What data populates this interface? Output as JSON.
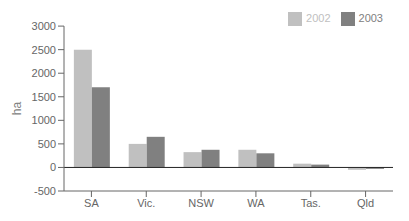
{
  "chart_data": {
    "type": "bar",
    "categories": [
      "SA",
      "Vic.",
      "NSW",
      "WA",
      "Tas.",
      "Qld"
    ],
    "series": [
      {
        "name": "2002",
        "color": "#c0c0c0",
        "values": [
          2500,
          500,
          325,
          375,
          80,
          -50
        ]
      },
      {
        "name": "2003",
        "color": "#808080",
        "values": [
          1700,
          650,
          375,
          300,
          60,
          -30
        ]
      }
    ],
    "ylabel": "ha",
    "ylim": [
      -500,
      3000
    ],
    "yticks": [
      -500,
      0,
      500,
      1000,
      1500,
      2000,
      2500,
      3000
    ],
    "legend": "upper right",
    "grid": false
  }
}
